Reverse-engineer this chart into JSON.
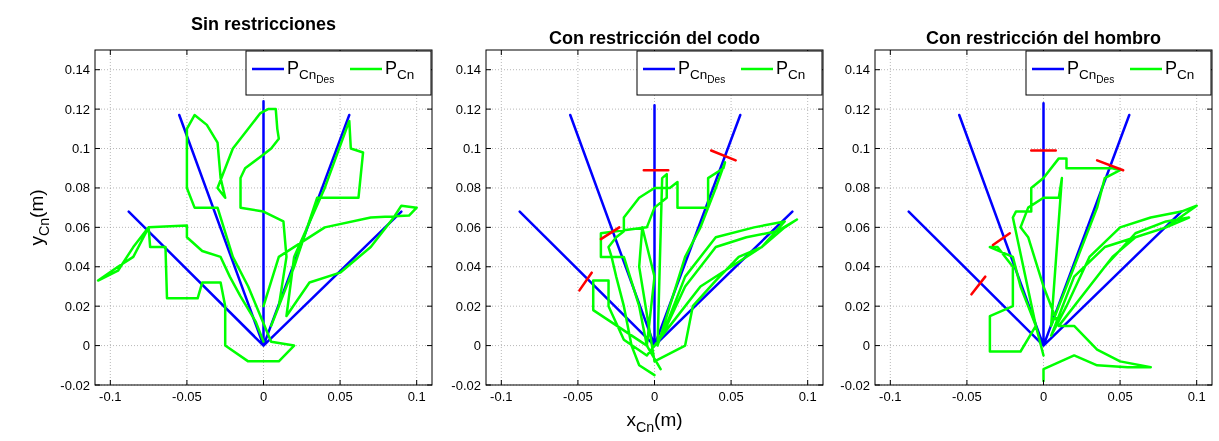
{
  "chart_data": [
    {
      "type": "line",
      "title": "Sin restricciones",
      "ylabel": "y$_{Cn}$(m)",
      "xlim": [
        -0.11,
        0.11
      ],
      "ylim": [
        -0.02,
        0.15
      ],
      "xticks": [
        -0.1,
        -0.05,
        0,
        0.05,
        0.1
      ],
      "yticks": [
        -0.02,
        0,
        0.02,
        0.04,
        0.06,
        0.08,
        0.1,
        0.12,
        0.14
      ],
      "grid": true,
      "legend": "top right",
      "marker": "none",
      "line_style": "solid",
      "series": [
        {
          "name": "P$_{Cn}$$_{Des}$",
          "color": "#0000ff",
          "x": [
            0,
            -0.088,
            null,
            0,
            -0.055,
            null,
            0,
            0,
            null,
            0,
            0.056,
            null,
            0,
            0.09
          ],
          "values": [
            0,
            0.068,
            null,
            0,
            0.117,
            null,
            0,
            0.124,
            null,
            0,
            0.117,
            null,
            0,
            0.068
          ]
        },
        {
          "name": "P$_{Cn}$",
          "color": "#00ff00",
          "x": [
            0,
            -0.005,
            -0.015,
            -0.022,
            -0.028,
            -0.04,
            -0.05,
            -0.05,
            -0.075,
            -0.085,
            -0.095,
            -0.108,
            -0.095,
            -0.085,
            -0.075,
            -0.074,
            -0.064,
            -0.063,
            -0.043,
            -0.04,
            -0.028,
            -0.025,
            -0.025,
            -0.01,
            0.01,
            0.02,
            0.005,
            -0.01,
            -0.02,
            -0.03,
            -0.045,
            -0.05,
            -0.05,
            -0.045,
            -0.037,
            -0.03,
            -0.028,
            -0.025,
            -0.03,
            -0.02,
            -0.002,
            0.003,
            0.008,
            0.009,
            0.01,
            0.005,
            0,
            -0.012,
            -0.015,
            -0.015,
            0,
            0.013,
            0.015,
            0.01,
            0.005,
            0.02,
            0.035,
            0.062,
            0.065,
            0.057,
            0.056,
            0.04,
            0.02,
            0.015,
            0.03,
            0.05,
            0.07,
            0.085,
            0.09,
            0.1,
            0.095,
            0.07,
            0.04,
            0.01,
            0
          ],
          "values": [
            0.002,
            0.012,
            0.025,
            0.035,
            0.045,
            0.048,
            0.055,
            0.061,
            0.06,
            0.05,
            0.038,
            0.033,
            0.04,
            0.045,
            0.06,
            0.05,
            0.05,
            0.024,
            0.024,
            0.032,
            0.032,
            0.02,
            0,
            -0.008,
            -0.008,
            0,
            0.002,
            0.03,
            0.045,
            0.07,
            0.07,
            0.08,
            0.11,
            0.117,
            0.112,
            0.103,
            0.085,
            0.075,
            0.08,
            0.1,
            0.118,
            0.12,
            0.12,
            0.11,
            0.105,
            0.1,
            0.097,
            0.09,
            0.085,
            0.07,
            0.068,
            0.063,
            0.045,
            0.02,
            0.01,
            0.04,
            0.075,
            0.075,
            0.098,
            0.1,
            0.114,
            0.08,
            0.045,
            0.015,
            0.032,
            0.037,
            0.05,
            0.065,
            0.071,
            0.07,
            0.066,
            0.065,
            0.06,
            0.045,
            0.02
          ]
        }
      ]
    },
    {
      "type": "line",
      "title": "Con restricción del codo",
      "xlabel": "x$_{Cn}$(m)",
      "xlim": [
        -0.11,
        0.11
      ],
      "ylim": [
        -0.02,
        0.15
      ],
      "xticks": [
        -0.1,
        -0.05,
        0,
        0.05,
        0.1
      ],
      "yticks": [
        -0.02,
        0,
        0.02,
        0.04,
        0.06,
        0.08,
        0.1,
        0.12,
        0.14
      ],
      "grid": true,
      "legend": "top right",
      "marker": "none",
      "line_style": "solid",
      "series": [
        {
          "name": "P$_{Cn}$$_{Des}$",
          "color": "#0000ff",
          "x": [
            0,
            -0.088,
            null,
            0,
            -0.055,
            null,
            0,
            0,
            null,
            0,
            0.056,
            null,
            0,
            0.09
          ],
          "values": [
            0,
            0.068,
            null,
            0,
            0.117,
            null,
            0,
            0.122,
            null,
            0,
            0.117,
            null,
            0,
            0.068
          ]
        },
        {
          "name": "P$_{Cn}$",
          "color": "#00ff00",
          "x": [
            0,
            -0.01,
            -0.015,
            -0.02,
            -0.025,
            -0.028,
            -0.03,
            -0.025,
            -0.02,
            -0.02,
            -0.01,
            0,
            0.01,
            0.015,
            0.015,
            0.035,
            0.035,
            0.045,
            0.046,
            0.04,
            0.03,
            0.02,
            0.01,
            0.002,
            0.005,
            0.008,
            0.008,
            0,
            -0.005,
            -0.035,
            -0.035,
            -0.02,
            -0.01,
            -0.005,
            -0.04,
            -0.04,
            -0.03,
            -0.03,
            -0.02,
            -0.005,
            0.01,
            0.03,
            0.05,
            0.07,
            0.085,
            0.093,
            0.08,
            0.06,
            0.04,
            0.02,
            0.005,
            0.02,
            0.04,
            0.065,
            0.085,
            0.07,
            0.055,
            0.04,
            0.025,
            0.02,
            0,
            -0.01,
            -0.008,
            0,
            -0.005,
            0.004
          ],
          "values": [
            -0.015,
            -0.01,
            0,
            0.02,
            0.035,
            0.045,
            0.05,
            0.055,
            0.058,
            0.065,
            0.075,
            0.08,
            0.08,
            0.083,
            0.07,
            0.07,
            0.085,
            0.09,
            0.093,
            0.08,
            0.06,
            0.045,
            0.02,
            0,
            0.085,
            0.087,
            0.075,
            0.07,
            0.06,
            0.057,
            0.045,
            0.045,
            0.02,
            0,
            0.018,
            0.033,
            0.033,
            0.02,
            0.003,
            -0.005,
            0.01,
            0.03,
            0.04,
            0.05,
            0.06,
            0.064,
            0.058,
            0.055,
            0.05,
            0.03,
            0.005,
            0.035,
            0.055,
            0.06,
            0.063,
            0.05,
            0.045,
            0.033,
            0.02,
            0,
            -0.008,
            0.04,
            0.06,
            0.035,
            0,
            -0.012
          ]
        },
        {
          "color": "#ff0000",
          "x": [
            -0.049,
            -0.041,
            null,
            -0.035,
            -0.023,
            null,
            -0.007,
            0.009,
            null,
            0.037,
            0.053
          ],
          "values": [
            0.028,
            0.037,
            null,
            0.054,
            0.06,
            null,
            0.089,
            0.089,
            null,
            0.099,
            0.094
          ]
        }
      ]
    },
    {
      "type": "line",
      "title": "Con restricción del hombro",
      "xlim": [
        -0.11,
        0.11
      ],
      "ylim": [
        -0.02,
        0.15
      ],
      "xticks": [
        -0.1,
        -0.05,
        0,
        0.05,
        0.1
      ],
      "yticks": [
        -0.02,
        0,
        0.02,
        0.04,
        0.06,
        0.08,
        0.1,
        0.12,
        0.14
      ],
      "grid": true,
      "legend": "top right",
      "marker": "none",
      "line_style": "solid",
      "series": [
        {
          "name": "P$_{Cn}$$_{Des}$",
          "color": "#0000ff",
          "x": [
            0,
            -0.088,
            null,
            0,
            -0.055,
            null,
            0,
            0,
            null,
            0,
            0.056,
            null,
            0,
            0.09
          ],
          "values": [
            0,
            0.068,
            null,
            0,
            0.117,
            null,
            0,
            0.123,
            null,
            0,
            0.117,
            null,
            0,
            0.068
          ]
        },
        {
          "name": "P$_{Cn}$",
          "color": "#00ff00",
          "x": [
            0,
            -0.005,
            -0.015,
            -0.02,
            -0.035,
            -0.03,
            -0.025,
            -0.02,
            -0.02,
            -0.035,
            -0.035,
            -0.015,
            -0.005,
            -0.02,
            -0.018,
            -0.008,
            -0.008,
            0.0,
            0.01,
            0.015,
            0.015,
            0.02,
            0.035,
            0.045,
            0.05,
            0.04,
            0.035,
            0.03,
            0.02,
            0.005,
            0.012,
            0.01,
            0.0,
            -0.01,
            -0.015,
            -0.01,
            0,
            0.01,
            0.03,
            0.045,
            0.06,
            0.08,
            0.1,
            0.09,
            0.07,
            0.05,
            0.03,
            0.015,
            0.005,
            0.02,
            0.04,
            0.06,
            0.08,
            0.095,
            0.08,
            0.06,
            0.04,
            0.02,
            0.01,
            0.02,
            0.035,
            0.05,
            0.07,
            0.055,
            0.035,
            0.02,
            0,
            0
          ],
          "values": [
            -0.005,
            0.01,
            0.03,
            0.045,
            0.05,
            0.05,
            0.045,
            0.04,
            0.02,
            0.015,
            -0.003,
            -0.003,
            0.01,
            0.065,
            0.068,
            0.068,
            0.08,
            0.085,
            0.095,
            0.095,
            0.09,
            0.09,
            0.09,
            0.09,
            0.089,
            0.085,
            0.07,
            0.06,
            0.04,
            0.01,
            0.085,
            0.075,
            0.075,
            0.07,
            0.06,
            0.055,
            0.03,
            0.01,
            0.03,
            0.045,
            0.055,
            0.06,
            0.071,
            0.068,
            0.065,
            0.06,
            0.045,
            0.02,
            0.005,
            0.035,
            0.05,
            0.055,
            0.06,
            0.065,
            0.063,
            0.057,
            0.04,
            0.02,
            0.01,
            0.01,
            -0.002,
            -0.008,
            -0.011,
            -0.011,
            -0.01,
            -0.005,
            -0.012,
            -0.018
          ]
        },
        {
          "color": "#ff0000",
          "x": [
            -0.047,
            -0.038,
            null,
            -0.033,
            -0.022,
            null,
            -0.008,
            0.008,
            null,
            0.035,
            0.052
          ],
          "values": [
            0.026,
            0.035,
            null,
            0.051,
            0.057,
            null,
            0.099,
            0.099,
            null,
            0.094,
            0.089
          ]
        }
      ]
    }
  ]
}
